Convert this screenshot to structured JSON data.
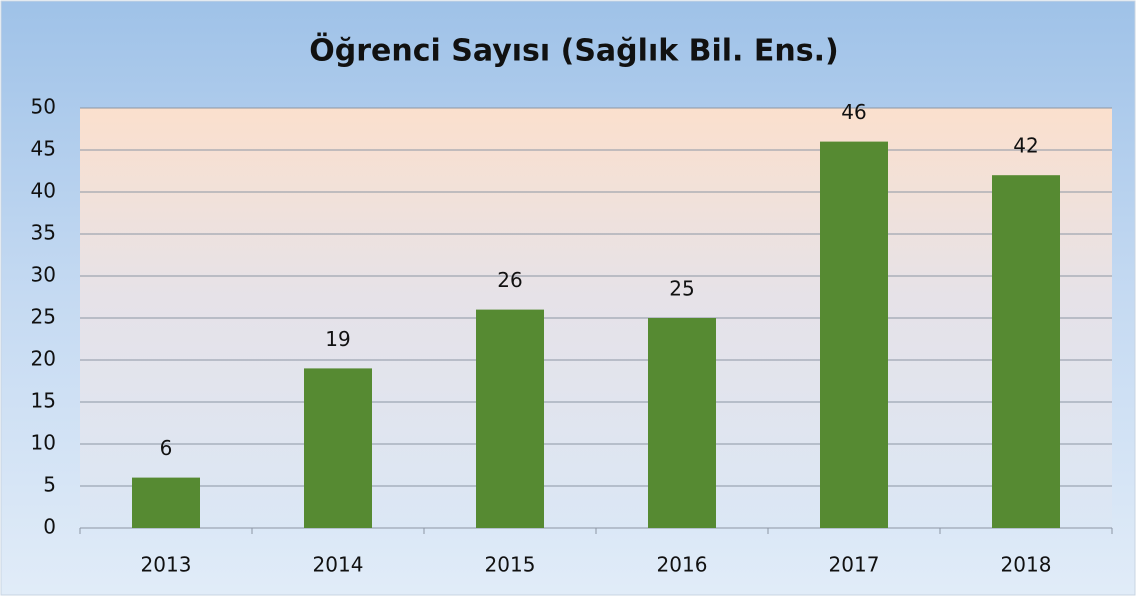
{
  "chart_data": {
    "type": "bar",
    "title": "Öğrenci Sayısı (Sağlık Bil. Ens.)",
    "categories": [
      "2013",
      "2014",
      "2015",
      "2016",
      "2017",
      "2018"
    ],
    "values": [
      6,
      19,
      26,
      25,
      46,
      42
    ],
    "color": "#568a32",
    "ylim": [
      0,
      50
    ],
    "yticks": [
      0,
      5,
      10,
      15,
      20,
      25,
      30,
      35,
      40,
      45,
      50
    ],
    "grid": true,
    "data_labels": true
  }
}
